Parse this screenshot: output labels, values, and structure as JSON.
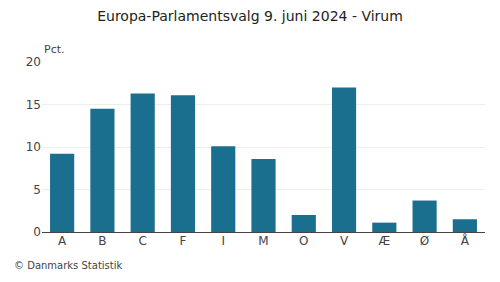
{
  "chart_data": {
    "type": "bar",
    "title": "Europa-Parlamentsvalg 9. juni 2024 - Virum",
    "categories": [
      "A",
      "B",
      "C",
      "F",
      "I",
      "M",
      "O",
      "V",
      "Æ",
      "Ø",
      "Å"
    ],
    "values": [
      9.2,
      14.5,
      16.3,
      16.1,
      10.1,
      8.6,
      2.0,
      17.0,
      1.1,
      3.7,
      1.5
    ],
    "color": "#1a6e8e",
    "ylabel": "Pct.",
    "annotations": [
      "© Danmarks Statistik"
    ],
    "ylim": [
      0,
      20
    ],
    "yticks": [
      0,
      5,
      10,
      15,
      20
    ],
    "grid": true
  }
}
